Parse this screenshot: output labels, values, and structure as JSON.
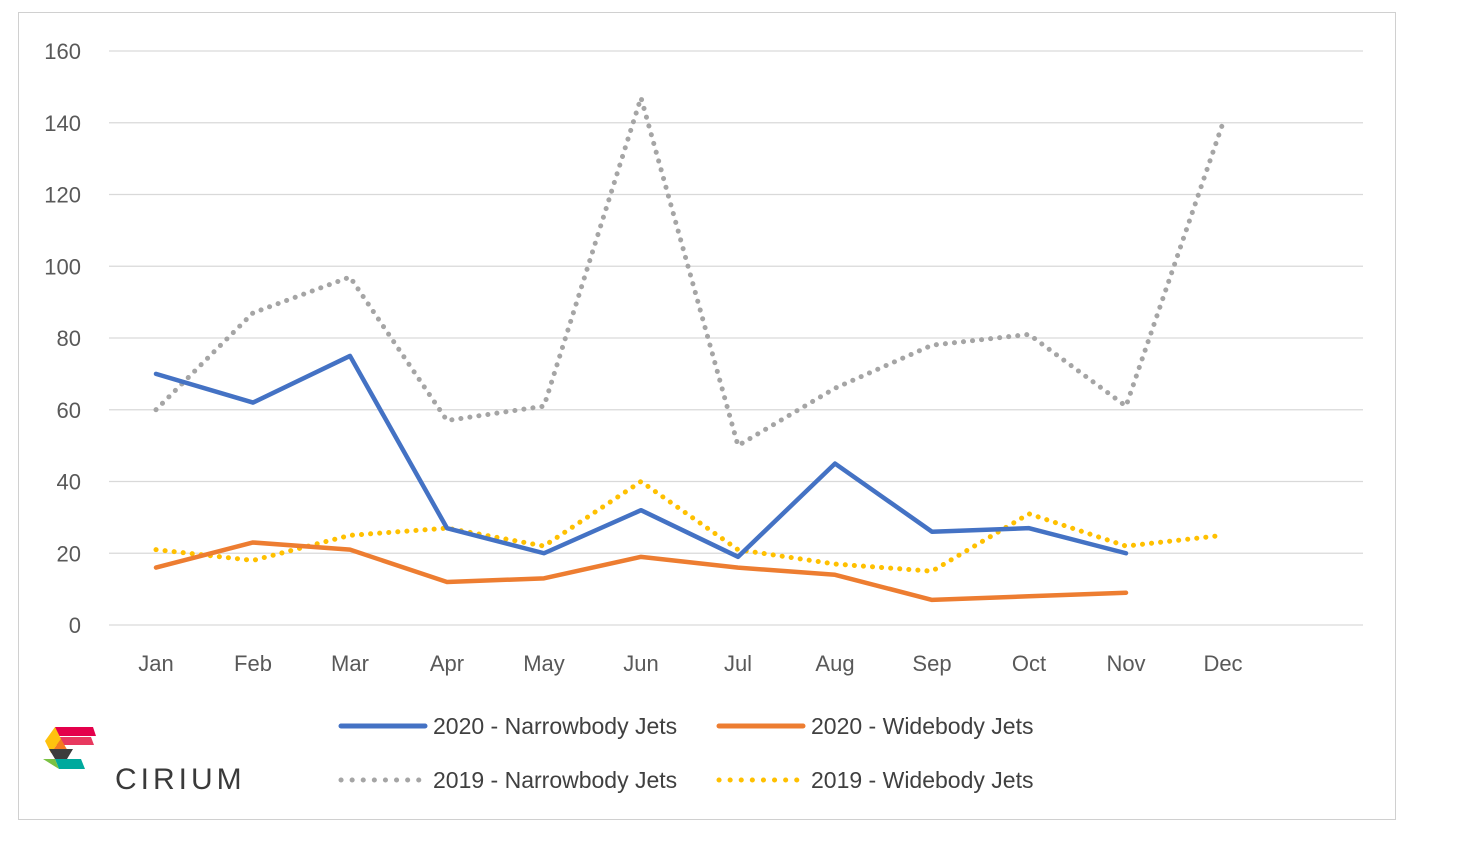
{
  "brand": {
    "name": "CIRIUM"
  },
  "chart_data": {
    "type": "line",
    "categories": [
      "Jan",
      "Feb",
      "Mar",
      "Apr",
      "May",
      "Jun",
      "Jul",
      "Aug",
      "Sep",
      "Oct",
      "Nov",
      "Dec"
    ],
    "ylim": [
      0,
      160
    ],
    "yticks": [
      0,
      20,
      40,
      60,
      80,
      100,
      120,
      140,
      160
    ],
    "grid": true,
    "legend": "bottom",
    "series": [
      {
        "name": "2020 - Narrowbody Jets",
        "color": "#4472c4",
        "style": "solid",
        "values": [
          70,
          62,
          75,
          27,
          20,
          32,
          19,
          45,
          26,
          27,
          20,
          null
        ]
      },
      {
        "name": "2020 - Widebody Jets",
        "color": "#ed7d31",
        "style": "solid",
        "values": [
          16,
          23,
          21,
          12,
          13,
          19,
          16,
          14,
          7,
          8,
          9,
          null
        ]
      },
      {
        "name": "2019 - Narrowbody Jets",
        "color": "#a5a5a5",
        "style": "dotted",
        "values": [
          60,
          87,
          97,
          57,
          61,
          147,
          50,
          66,
          78,
          81,
          61,
          140
        ]
      },
      {
        "name": "2019 - Widebody Jets",
        "color": "#ffc000",
        "style": "dotted",
        "values": [
          21,
          18,
          25,
          27,
          22,
          40,
          21,
          17,
          15,
          31,
          22,
          25
        ]
      }
    ]
  }
}
